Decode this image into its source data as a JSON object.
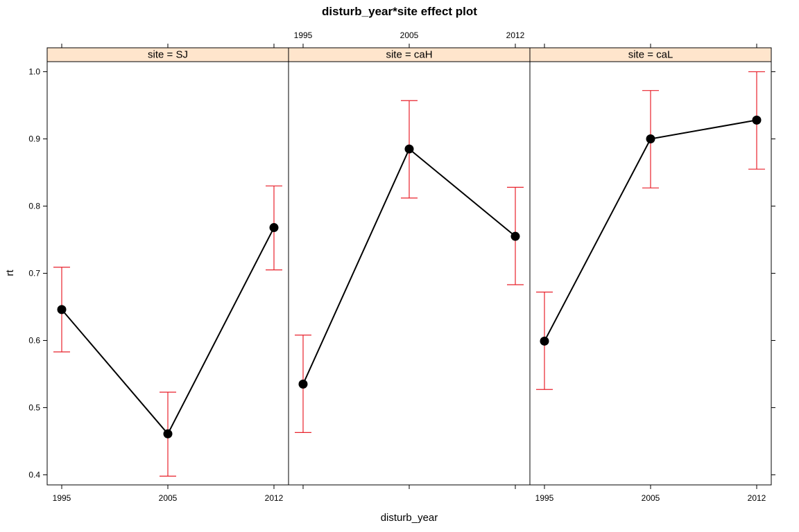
{
  "chart_data": {
    "type": "line",
    "title": "disturb_year*site effect plot",
    "xlabel": "disturb_year",
    "ylabel": "rt",
    "x_ticks": [
      "1995",
      "2005",
      "2012"
    ],
    "y_ticks": [
      "0.4",
      "0.5",
      "0.6",
      "0.7",
      "0.8",
      "0.9",
      "1.0"
    ],
    "ylim": [
      0.385,
      1.015
    ],
    "grid": false,
    "legend": "none",
    "colors": {
      "line": "#000000",
      "error_bar": "#e8212b",
      "strip_fill": "#ffe5cc",
      "point": "#000000"
    },
    "panels": [
      {
        "strip": "site = SJ",
        "points": [
          {
            "x": "1995",
            "y": 0.646,
            "lower": 0.583,
            "upper": 0.709
          },
          {
            "x": "2005",
            "y": 0.461,
            "lower": 0.398,
            "upper": 0.523
          },
          {
            "x": "2012",
            "y": 0.768,
            "lower": 0.705,
            "upper": 0.83
          }
        ]
      },
      {
        "strip": "site = caH",
        "points": [
          {
            "x": "1995",
            "y": 0.535,
            "lower": 0.463,
            "upper": 0.608
          },
          {
            "x": "2005",
            "y": 0.885,
            "lower": 0.812,
            "upper": 0.957
          },
          {
            "x": "2012",
            "y": 0.755,
            "lower": 0.683,
            "upper": 0.828
          }
        ]
      },
      {
        "strip": "site = caL",
        "points": [
          {
            "x": "1995",
            "y": 0.599,
            "lower": 0.527,
            "upper": 0.672
          },
          {
            "x": "2005",
            "y": 0.9,
            "lower": 0.827,
            "upper": 0.972
          },
          {
            "x": "2012",
            "y": 0.928,
            "lower": 0.855,
            "upper": 1.0
          }
        ]
      }
    ]
  }
}
